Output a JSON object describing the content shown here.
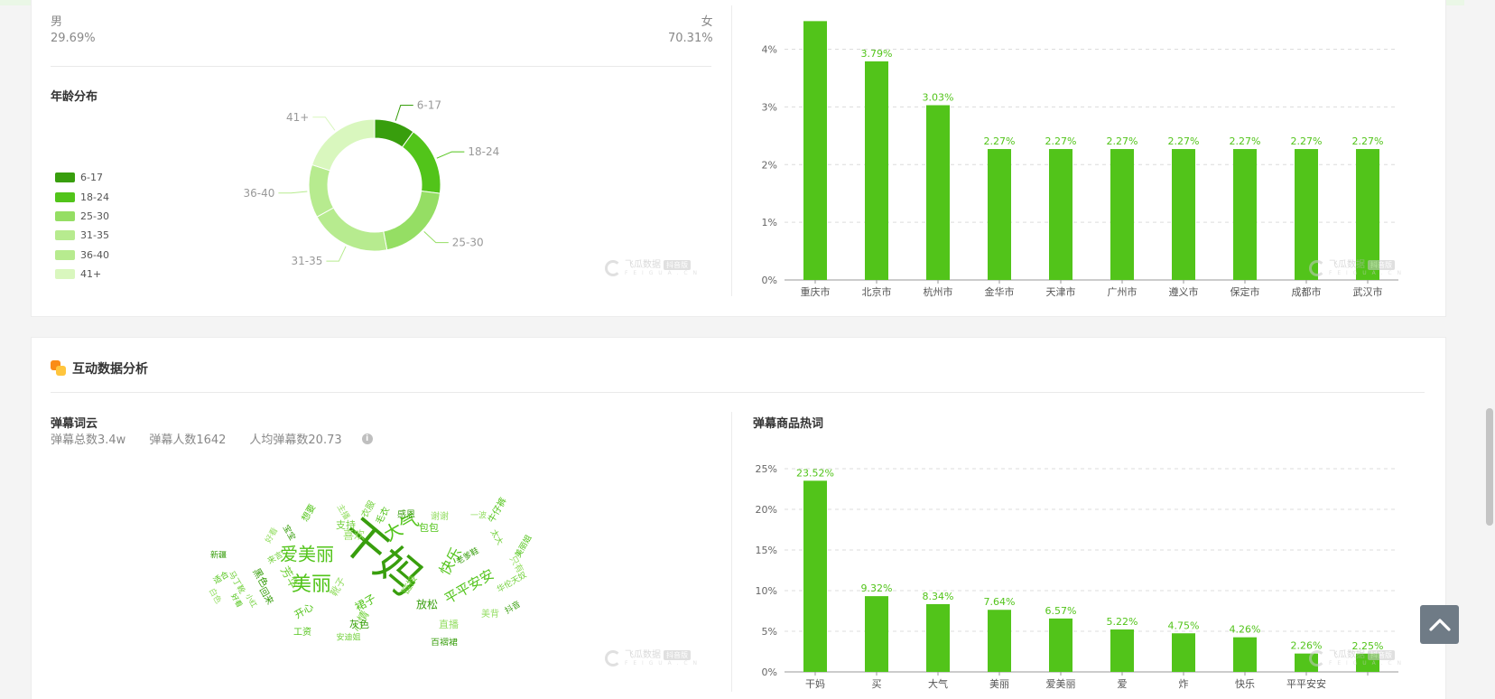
{
  "colors": {
    "accent": "#52c41a",
    "label_green": "#52c41a",
    "age_6_17": "#389e0d",
    "age_18_24": "#52c41a",
    "age_25_30": "#95de64",
    "age_31_35": "#b7eb8f",
    "age_36_40": "#b7eb8f",
    "age_41_plus": "#d9f7be"
  },
  "gender": {
    "male_label": "男",
    "male_value": "29.69%",
    "female_label": "女",
    "female_value": "70.31%"
  },
  "age": {
    "title": "年龄分布"
  },
  "interaction": {
    "title": "互动数据分析",
    "danmu_cloud_title": "弹幕词云",
    "stats": {
      "total": "弹幕总数3.4w",
      "people": "弹幕人数1642",
      "per_person": "人均弹幕数20.73",
      "info_icon": "i"
    },
    "hot_words_title": "弹幕商品热词"
  },
  "watermark": {
    "text": "飞瓜数据",
    "tag": "抖音版",
    "sub": "F E I G U A . C N"
  },
  "back_to_top": {
    "icon": "chevron-up-icon"
  },
  "wordcloud": [
    {
      "t": "干妈",
      "s": 50,
      "r": 40
    },
    {
      "t": "美丽",
      "s": 22,
      "r": 0
    },
    {
      "t": "爱美丽",
      "s": 20,
      "r": 0
    },
    {
      "t": "大气",
      "s": 20,
      "r": -30
    },
    {
      "t": "快乐",
      "s": 16,
      "r": -60
    },
    {
      "t": "平平安安",
      "s": 15,
      "r": -30
    },
    {
      "t": "芳华",
      "s": 13,
      "r": 60
    },
    {
      "t": "喜欢",
      "s": 12,
      "r": 0
    },
    {
      "t": "放松",
      "s": 12,
      "r": 0
    },
    {
      "t": "裙子",
      "s": 12,
      "r": -30
    },
    {
      "t": "心情",
      "s": 12,
      "r": -60
    },
    {
      "t": "靴子",
      "s": 11,
      "r": -60
    },
    {
      "t": "黑色",
      "s": 11,
      "r": 60
    },
    {
      "t": "开心",
      "s": 11,
      "r": -30
    },
    {
      "t": "链接",
      "s": 11,
      "r": -60
    },
    {
      "t": "直播",
      "s": 11,
      "r": 0
    },
    {
      "t": "灰色",
      "s": 11,
      "r": 0
    },
    {
      "t": "包包",
      "s": 11,
      "r": 0
    },
    {
      "t": "支持",
      "s": 11,
      "r": 0
    },
    {
      "t": "谢谢",
      "s": 10,
      "r": 0
    },
    {
      "t": "感恩",
      "s": 10,
      "r": 0
    },
    {
      "t": "毛衣",
      "s": 10,
      "r": -60
    },
    {
      "t": "衣服",
      "s": 10,
      "r": -60
    },
    {
      "t": "主播",
      "s": 9,
      "r": 60
    },
    {
      "t": "宝宝",
      "s": 9,
      "r": 60
    },
    {
      "t": "想要",
      "s": 10,
      "r": -60
    },
    {
      "t": "来言",
      "s": 9,
      "r": -30
    },
    {
      "t": "只有",
      "s": 10,
      "r": 60
    },
    {
      "t": "百褶裙",
      "s": 10,
      "r": 0
    },
    {
      "t": "工资",
      "s": 10,
      "r": 0
    },
    {
      "t": "安迪姐",
      "s": 9,
      "r": 0
    },
    {
      "t": "一波",
      "s": 9,
      "r": 0
    },
    {
      "t": "老爹鞋",
      "s": 9,
      "r": -30
    },
    {
      "t": "牛仔裤",
      "s": 10,
      "r": -60
    },
    {
      "t": "华伦天奴",
      "s": 9,
      "r": -30
    },
    {
      "t": "美背",
      "s": 10,
      "r": 0
    },
    {
      "t": "抖音",
      "s": 9,
      "r": -30
    },
    {
      "t": "美丽姐",
      "s": 9,
      "r": -60
    },
    {
      "t": "太大",
      "s": 9,
      "r": 60
    },
    {
      "t": "好看",
      "s": 9,
      "r": -60
    },
    {
      "t": "新疆",
      "s": 9,
      "r": 0
    },
    {
      "t": "适合",
      "s": 9,
      "r": -30
    },
    {
      "t": "马丁靴",
      "s": 9,
      "r": 60
    },
    {
      "t": "白色",
      "s": 9,
      "r": 60
    },
    {
      "t": "回来",
      "s": 10,
      "r": 60
    },
    {
      "t": "好看",
      "s": 8,
      "r": 60
    },
    {
      "t": "小红",
      "s": 8,
      "r": 60
    }
  ],
  "chart_data": [
    {
      "type": "pie",
      "donut": true,
      "title": "年龄分布",
      "categories": [
        "6-17",
        "18-24",
        "25-30",
        "31-35",
        "36-40",
        "41+"
      ],
      "values": [
        10,
        17,
        20,
        20,
        13,
        20
      ],
      "legend": "left"
    },
    {
      "type": "bar",
      "categories": [
        "重庆市",
        "北京市",
        "杭州市",
        "金华市",
        "天津市",
        "广州市",
        "遵义市",
        "保定市",
        "成都市",
        "武汉市"
      ],
      "values": [
        4.5,
        3.79,
        3.03,
        2.27,
        2.27,
        2.27,
        2.27,
        2.27,
        2.27,
        2.27
      ],
      "labels": [
        "",
        "3.79%",
        "3.03%",
        "2.27%",
        "2.27%",
        "2.27%",
        "2.27%",
        "2.27%",
        "2.27%",
        "2.27%"
      ],
      "yticks": [
        "0%",
        "1%",
        "2%",
        "3%",
        "4%"
      ],
      "ylim": [
        0,
        4.4
      ],
      "grid": true
    },
    {
      "type": "bar",
      "title": "弹幕商品热词",
      "categories": [
        "干妈",
        "买",
        "大气",
        "美丽",
        "爱美丽",
        "爱",
        "炸",
        "快乐",
        "平平安安",
        ""
      ],
      "values": [
        23.52,
        9.32,
        8.34,
        7.64,
        6.57,
        5.22,
        4.75,
        4.26,
        2.26,
        2.25
      ],
      "labels": [
        "23.52%",
        "9.32%",
        "8.34%",
        "7.64%",
        "6.57%",
        "5.22%",
        "4.75%",
        "4.26%",
        "2.26%",
        "2.25%"
      ],
      "yticks": [
        "0%",
        "5%",
        "10%",
        "15%",
        "20%",
        "25%"
      ],
      "ylim": [
        0,
        25
      ],
      "grid": true
    }
  ]
}
